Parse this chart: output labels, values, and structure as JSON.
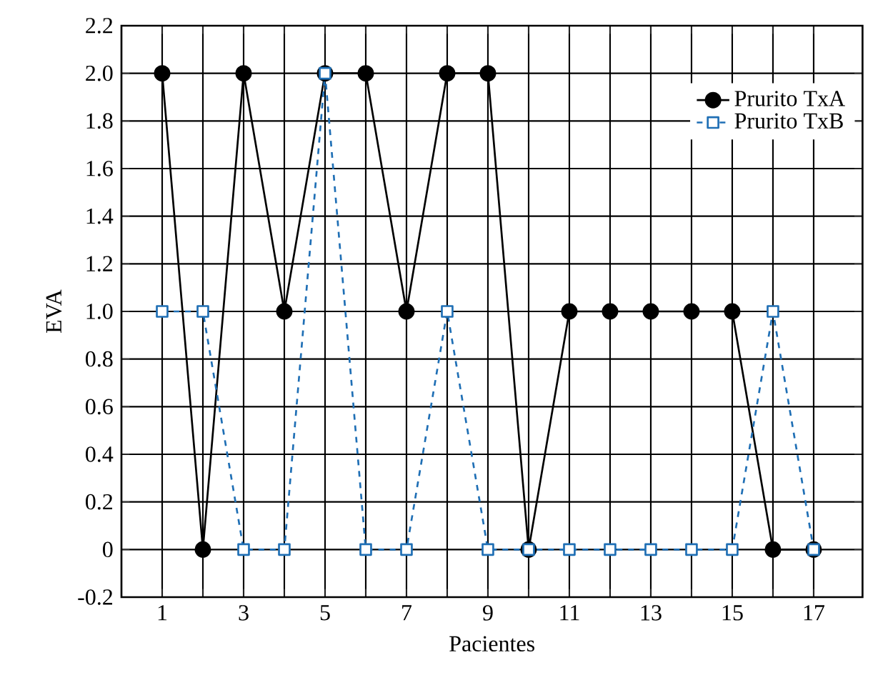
{
  "chart_data": {
    "type": "line",
    "xlabel": "Pacientes",
    "ylabel": "EVA",
    "x": [
      1,
      2,
      3,
      4,
      5,
      6,
      7,
      8,
      9,
      10,
      11,
      12,
      13,
      14,
      15,
      16,
      17
    ],
    "series": [
      {
        "name": "Prurito TxA",
        "color": "#000000",
        "marker": "circle",
        "line_style": "solid",
        "values": [
          2,
          0,
          2,
          1,
          2,
          2,
          1,
          2,
          2,
          0,
          1,
          1,
          1,
          1,
          1,
          0,
          0
        ]
      },
      {
        "name": "Prurito TxB",
        "color": "#1f6fb5",
        "marker": "square",
        "line_style": "dashed",
        "values": [
          1,
          1,
          0,
          0,
          2,
          0,
          0,
          1,
          0,
          0,
          0,
          0,
          0,
          0,
          0,
          1,
          0
        ]
      }
    ],
    "xlim": [
      0,
      18.2
    ],
    "xticks": [
      1,
      {
        "value": 2,
        "label": null
      },
      3,
      {
        "value": 4,
        "label": null
      },
      5,
      {
        "value": 6,
        "label": null
      },
      7,
      {
        "value": 8,
        "label": null
      },
      9,
      {
        "value": 10,
        "label": null
      },
      11,
      {
        "value": 12,
        "label": null
      },
      13,
      {
        "value": 14,
        "label": null
      },
      15,
      {
        "value": 16,
        "label": null
      },
      17
    ],
    "ylim": [
      -0.2,
      2.2
    ],
    "yticks": [
      -0.2,
      0,
      0.2,
      0.4,
      0.6,
      0.8,
      {
        "value": 1,
        "label": "1.0"
      },
      1.2,
      1.4,
      1.6,
      1.8,
      {
        "value": 2,
        "label": "2.0"
      },
      2.2
    ],
    "grid": true,
    "legend": "top right"
  }
}
